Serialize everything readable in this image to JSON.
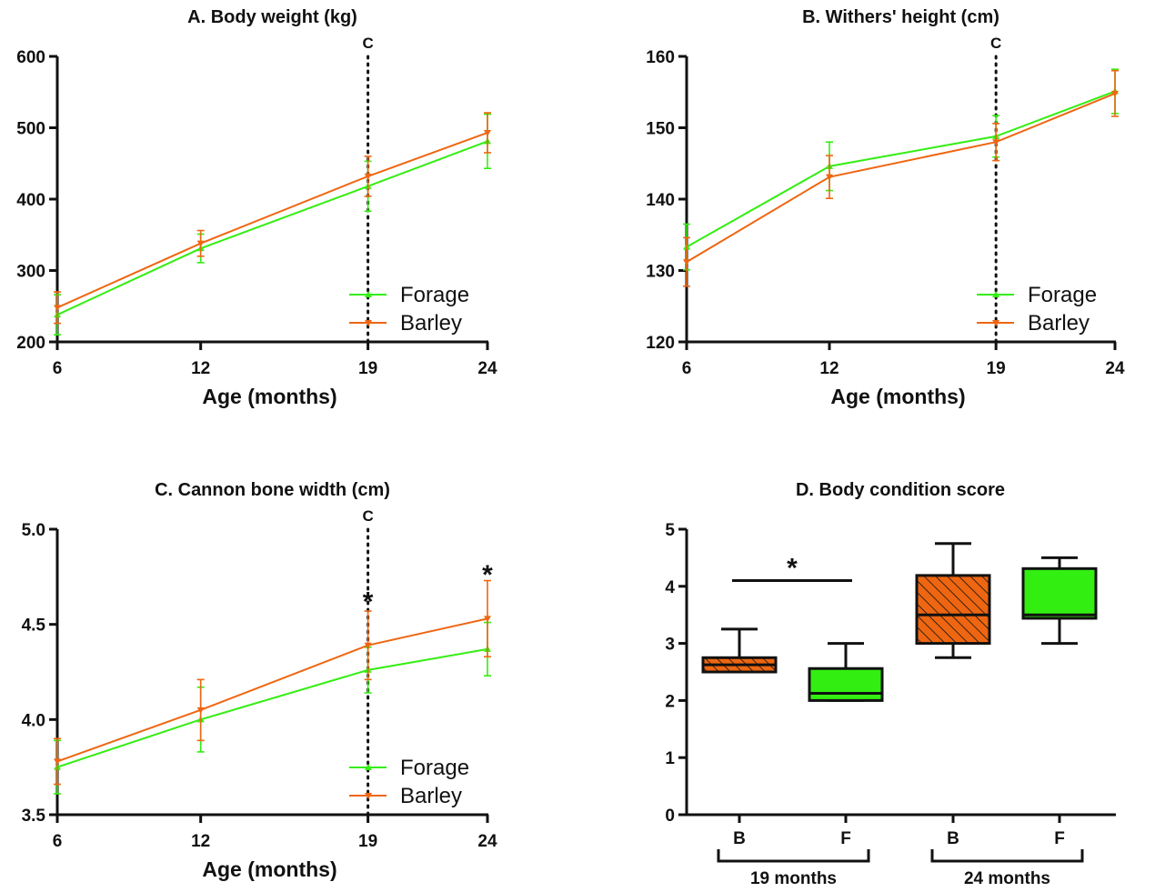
{
  "colors": {
    "forage": "#33ee11",
    "barley": "#ee6611",
    "axis": "#111111"
  },
  "chart_data": [
    {
      "type": "line",
      "title": "A. Body weight (kg)",
      "xlabel": "Age (months)",
      "ylabel": "",
      "x": [
        6,
        12,
        19,
        24
      ],
      "x_tick_labels": [
        "6",
        "12",
        "19",
        "24"
      ],
      "ylim": [
        200,
        600
      ],
      "y_ticks": [
        200,
        300,
        400,
        500,
        600
      ],
      "y_tick_labels": [
        "200",
        "300",
        "400",
        "500",
        "600"
      ],
      "vline": {
        "x": 19,
        "label": "C"
      },
      "series": [
        {
          "name": "Forage",
          "values": [
            238,
            331,
            418,
            481
          ],
          "err": [
            28,
            20,
            35,
            38
          ]
        },
        {
          "name": "Barley",
          "values": [
            248,
            338,
            432,
            493
          ],
          "err": [
            22,
            18,
            28,
            28
          ]
        }
      ],
      "annotations": [],
      "legend": "bottom-right"
    },
    {
      "type": "line",
      "title": "B. Withers' height (cm)",
      "xlabel": "Age (months)",
      "ylabel": "",
      "x": [
        6,
        12,
        19,
        24
      ],
      "x_tick_labels": [
        "6",
        "12",
        "19",
        "24"
      ],
      "ylim": [
        120,
        160
      ],
      "y_ticks": [
        120,
        130,
        140,
        150,
        160
      ],
      "y_tick_labels": [
        "120",
        "130",
        "140",
        "150",
        "160"
      ],
      "vline": {
        "x": 19,
        "label": "C"
      },
      "series": [
        {
          "name": "Forage",
          "values": [
            133.3,
            144.6,
            148.8,
            155.1
          ],
          "err": [
            3.2,
            3.4,
            2.9,
            3.1
          ]
        },
        {
          "name": "Barley",
          "values": [
            131.2,
            143.1,
            148.0,
            154.8
          ],
          "err": [
            3.4,
            3.0,
            2.6,
            3.2
          ]
        }
      ],
      "annotations": [],
      "legend": "bottom-right"
    },
    {
      "type": "line",
      "title": "C. Cannon bone width (cm)",
      "xlabel": "Age (months)",
      "ylabel": "",
      "x": [
        6,
        12,
        19,
        24
      ],
      "x_tick_labels": [
        "6",
        "12",
        "19",
        "24"
      ],
      "ylim": [
        3.5,
        5.0
      ],
      "y_ticks": [
        3.5,
        4.0,
        4.5,
        5.0
      ],
      "y_tick_labels": [
        "3.5",
        "4.0",
        "4.5",
        "5.0"
      ],
      "vline": {
        "x": 19,
        "label": "C"
      },
      "series": [
        {
          "name": "Forage",
          "values": [
            3.75,
            4.0,
            4.26,
            4.37
          ],
          "err": [
            0.14,
            0.17,
            0.12,
            0.14
          ]
        },
        {
          "name": "Barley",
          "values": [
            3.78,
            4.05,
            4.39,
            4.53
          ],
          "err": [
            0.12,
            0.16,
            0.18,
            0.2
          ]
        }
      ],
      "annotations": [
        {
          "x": 19,
          "y": 4.63,
          "text": "*"
        },
        {
          "x": 24,
          "y": 4.77,
          "text": "*"
        }
      ],
      "legend": "bottom-right"
    },
    {
      "type": "box",
      "title": "D. Body condition score",
      "ylim": [
        0,
        5
      ],
      "y_ticks": [
        0,
        1,
        2,
        3,
        4,
        5
      ],
      "y_tick_labels": [
        "0",
        "1",
        "2",
        "3",
        "4",
        "5"
      ],
      "categories": [
        "B",
        "F",
        "B",
        "F"
      ],
      "groups": [
        {
          "label": "19 months",
          "members": [
            0,
            1
          ]
        },
        {
          "label": "24 months",
          "members": [
            2,
            3
          ]
        }
      ],
      "boxes": [
        {
          "category": "B",
          "group": "19 months",
          "min": 2.5,
          "q1": 2.5,
          "median": 2.625,
          "q3": 2.75,
          "max": 3.25,
          "pattern": "hatched"
        },
        {
          "category": "F",
          "group": "19 months",
          "min": 2.0,
          "q1": 2.0,
          "median": 2.125,
          "q3": 2.56,
          "max": 3.0,
          "pattern": "solid"
        },
        {
          "category": "B",
          "group": "24 months",
          "min": 2.75,
          "q1": 3.0,
          "median": 3.5,
          "q3": 4.19,
          "max": 4.75,
          "pattern": "hatched"
        },
        {
          "category": "F",
          "group": "24 months",
          "min": 3.0,
          "q1": 3.44,
          "median": 3.5,
          "q3": 4.31,
          "max": 4.5,
          "pattern": "solid"
        }
      ],
      "significance": {
        "from": 0,
        "to": 1,
        "y": 4.1,
        "text": "*"
      }
    }
  ]
}
